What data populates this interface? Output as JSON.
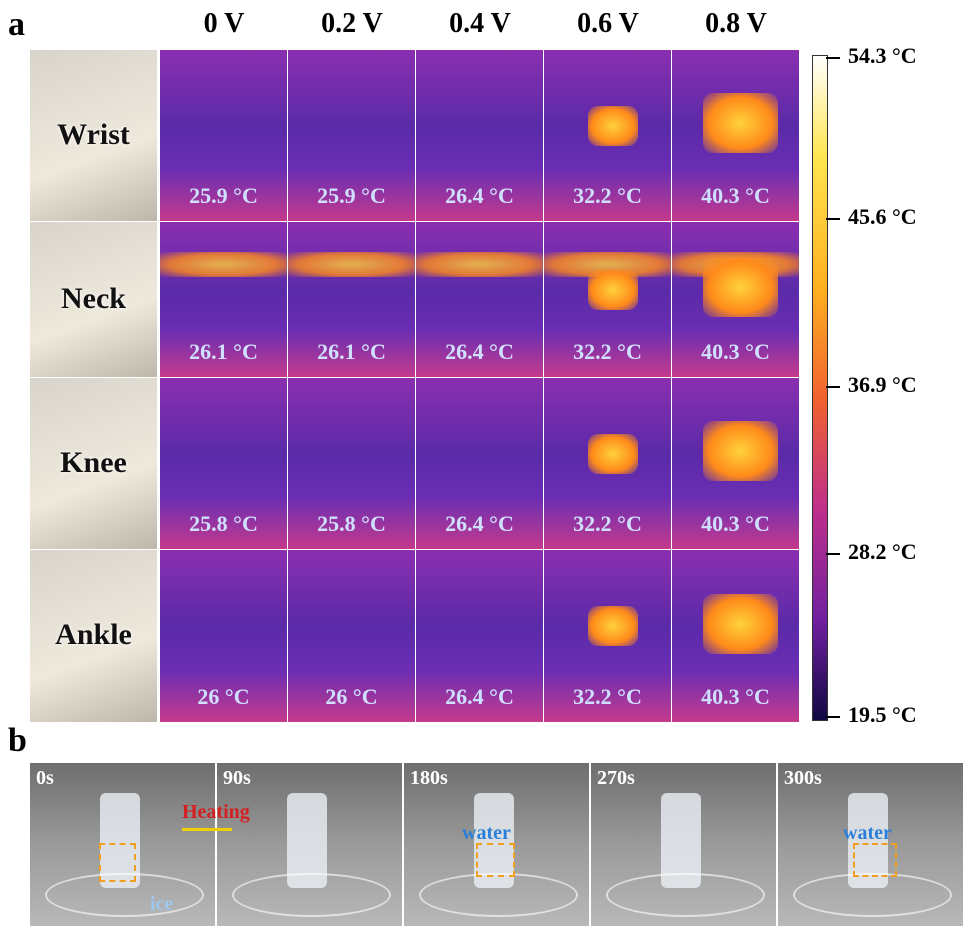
{
  "panel_a": {
    "label": "a",
    "columns": [
      "0 V",
      "0.2 V",
      "0.4 V",
      "0.6 V",
      "0.8 V"
    ],
    "rows": [
      {
        "name": "Wrist",
        "temps": [
          "25.9 °C",
          "25.9 °C",
          "26.4 °C",
          "32.2 °C",
          "40.3 °C"
        ]
      },
      {
        "name": "Neck",
        "temps": [
          "26.1 °C",
          "26.1 °C",
          "26.4 °C",
          "32.2 °C",
          "40.3 °C"
        ]
      },
      {
        "name": "Knee",
        "temps": [
          "25.8 °C",
          "25.8 °C",
          "26.4 °C",
          "32.2 °C",
          "40.3 °C"
        ]
      },
      {
        "name": "Ankle",
        "temps": [
          "26 °C",
          "26 °C",
          "26.4 °C",
          "32.2 °C",
          "40.3 °C"
        ]
      }
    ],
    "colorbar_ticks": [
      "54.3 °C",
      "45.6 °C",
      "36.9 °C",
      "28.2 °C",
      "19.5 °C"
    ]
  },
  "panel_b": {
    "label": "b",
    "frames": [
      "0s",
      "90s",
      "180s",
      "270s",
      "300s"
    ],
    "annotations": {
      "heating": "Heating",
      "ice": "ice",
      "water_1": "water",
      "water_2": "water"
    }
  }
}
